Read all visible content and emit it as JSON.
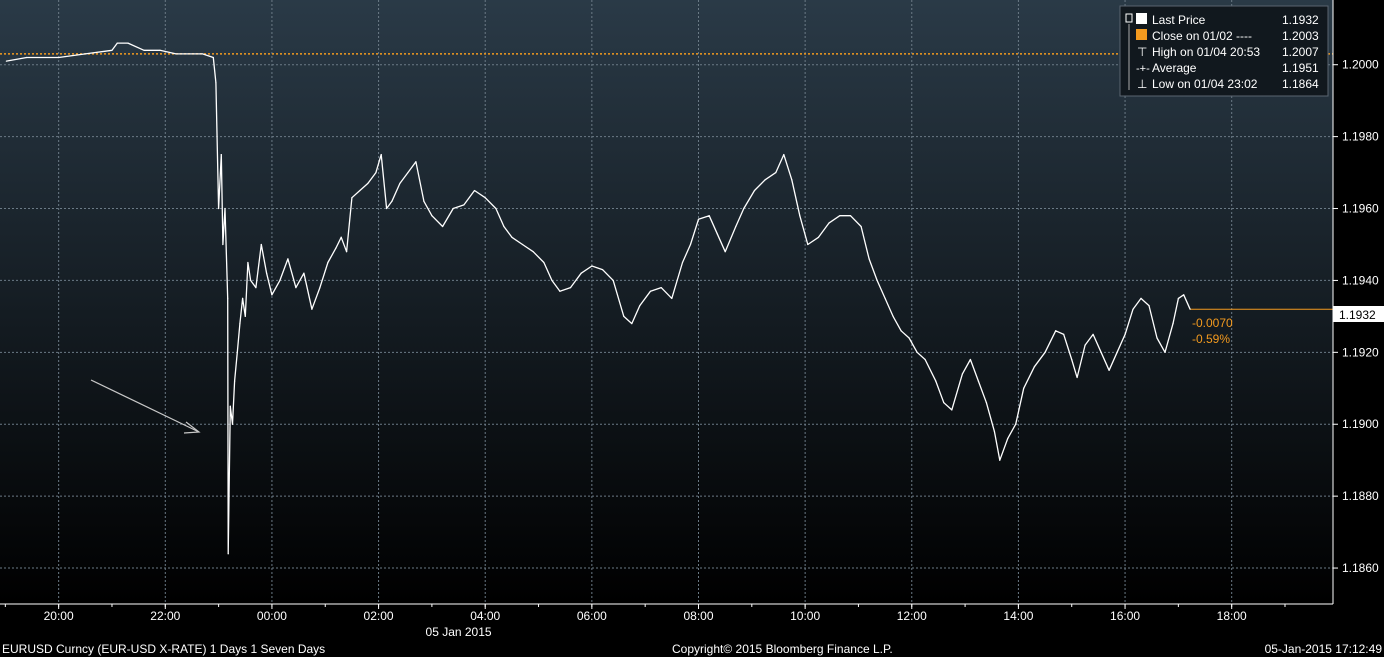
{
  "chart_data": {
    "type": "line",
    "x_axis": {
      "tick_labels": [
        "20:00",
        "22:00",
        "00:00",
        "02:00",
        "04:00",
        "06:00",
        "08:00",
        "10:00",
        "12:00",
        "14:00",
        "16:00",
        "18:00"
      ],
      "date_label": "05 Jan 2015",
      "range_hours": [
        -5.1,
        19.9
      ]
    },
    "y_axis": {
      "tick_labels": [
        "1.1860",
        "1.1880",
        "1.1900",
        "1.1920",
        "1.1940",
        "1.1960",
        "1.1980",
        "1.2000"
      ],
      "ylim": [
        1.185,
        1.2018
      ],
      "grid": true
    },
    "series": [
      {
        "name": "Last Price",
        "color": "#ffffff",
        "points": [
          [
            -4.98,
            1.2001
          ],
          [
            -4.6,
            1.2002
          ],
          [
            -4.0,
            1.2002
          ],
          [
            -3.5,
            1.2003
          ],
          [
            -3.0,
            1.2004
          ],
          [
            -2.9,
            1.2006
          ],
          [
            -2.7,
            1.2006
          ],
          [
            -2.4,
            1.2004
          ],
          [
            -2.1,
            1.2004
          ],
          [
            -1.8,
            1.2003
          ],
          [
            -1.3,
            1.2003
          ],
          [
            -1.1,
            1.2002
          ],
          [
            -1.05,
            1.1995
          ],
          [
            -1.0,
            1.196
          ],
          [
            -0.95,
            1.1975
          ],
          [
            -0.92,
            1.195
          ],
          [
            -0.88,
            1.196
          ],
          [
            -0.83,
            1.1935
          ],
          [
            -0.82,
            1.1864
          ],
          [
            -0.78,
            1.1905
          ],
          [
            -0.74,
            1.19
          ],
          [
            -0.7,
            1.1912
          ],
          [
            -0.65,
            1.192
          ],
          [
            -0.6,
            1.1928
          ],
          [
            -0.55,
            1.1935
          ],
          [
            -0.5,
            1.193
          ],
          [
            -0.45,
            1.1945
          ],
          [
            -0.4,
            1.194
          ],
          [
            -0.3,
            1.1938
          ],
          [
            -0.2,
            1.195
          ],
          [
            -0.1,
            1.1942
          ],
          [
            0.0,
            1.1936
          ],
          [
            0.15,
            1.194
          ],
          [
            0.3,
            1.1946
          ],
          [
            0.45,
            1.1938
          ],
          [
            0.6,
            1.1942
          ],
          [
            0.75,
            1.1932
          ],
          [
            0.9,
            1.1938
          ],
          [
            1.05,
            1.1945
          ],
          [
            1.2,
            1.1949
          ],
          [
            1.3,
            1.1952
          ],
          [
            1.4,
            1.1948
          ],
          [
            1.5,
            1.1963
          ],
          [
            1.65,
            1.1965
          ],
          [
            1.8,
            1.1967
          ],
          [
            1.95,
            1.197
          ],
          [
            2.05,
            1.1975
          ],
          [
            2.15,
            1.196
          ],
          [
            2.25,
            1.1962
          ],
          [
            2.4,
            1.1967
          ],
          [
            2.55,
            1.197
          ],
          [
            2.7,
            1.1973
          ],
          [
            2.85,
            1.1962
          ],
          [
            3.0,
            1.1958
          ],
          [
            3.2,
            1.1955
          ],
          [
            3.4,
            1.196
          ],
          [
            3.6,
            1.1961
          ],
          [
            3.8,
            1.1965
          ],
          [
            4.0,
            1.1963
          ],
          [
            4.2,
            1.196
          ],
          [
            4.35,
            1.1955
          ],
          [
            4.5,
            1.1952
          ],
          [
            4.7,
            1.195
          ],
          [
            4.9,
            1.1948
          ],
          [
            5.1,
            1.1945
          ],
          [
            5.25,
            1.194
          ],
          [
            5.4,
            1.1937
          ],
          [
            5.6,
            1.1938
          ],
          [
            5.8,
            1.1942
          ],
          [
            6.0,
            1.1944
          ],
          [
            6.2,
            1.1943
          ],
          [
            6.4,
            1.194
          ],
          [
            6.6,
            1.193
          ],
          [
            6.75,
            1.1928
          ],
          [
            6.9,
            1.1933
          ],
          [
            7.1,
            1.1937
          ],
          [
            7.3,
            1.1938
          ],
          [
            7.5,
            1.1935
          ],
          [
            7.7,
            1.1945
          ],
          [
            7.85,
            1.195
          ],
          [
            8.0,
            1.1957
          ],
          [
            8.2,
            1.1958
          ],
          [
            8.35,
            1.1953
          ],
          [
            8.5,
            1.1948
          ],
          [
            8.7,
            1.1955
          ],
          [
            8.85,
            1.196
          ],
          [
            9.05,
            1.1965
          ],
          [
            9.25,
            1.1968
          ],
          [
            9.45,
            1.197
          ],
          [
            9.6,
            1.1975
          ],
          [
            9.75,
            1.1968
          ],
          [
            9.9,
            1.1958
          ],
          [
            10.05,
            1.195
          ],
          [
            10.25,
            1.1952
          ],
          [
            10.45,
            1.1956
          ],
          [
            10.65,
            1.1958
          ],
          [
            10.85,
            1.1958
          ],
          [
            11.05,
            1.1955
          ],
          [
            11.2,
            1.1946
          ],
          [
            11.35,
            1.194
          ],
          [
            11.5,
            1.1935
          ],
          [
            11.65,
            1.193
          ],
          [
            11.8,
            1.1926
          ],
          [
            11.95,
            1.1924
          ],
          [
            12.1,
            1.192
          ],
          [
            12.25,
            1.1918
          ],
          [
            12.45,
            1.1912
          ],
          [
            12.6,
            1.1906
          ],
          [
            12.75,
            1.1904
          ],
          [
            12.95,
            1.1914
          ],
          [
            13.1,
            1.1918
          ],
          [
            13.25,
            1.1912
          ],
          [
            13.4,
            1.1906
          ],
          [
            13.55,
            1.1898
          ],
          [
            13.65,
            1.189
          ],
          [
            13.8,
            1.1896
          ],
          [
            13.95,
            1.19
          ],
          [
            14.1,
            1.191
          ],
          [
            14.3,
            1.1916
          ],
          [
            14.5,
            1.192
          ],
          [
            14.7,
            1.1926
          ],
          [
            14.85,
            1.1925
          ],
          [
            15.0,
            1.1918
          ],
          [
            15.1,
            1.1913
          ],
          [
            15.25,
            1.1922
          ],
          [
            15.4,
            1.1925
          ],
          [
            15.55,
            1.192
          ],
          [
            15.7,
            1.1915
          ],
          [
            15.85,
            1.192
          ],
          [
            16.0,
            1.1925
          ],
          [
            16.15,
            1.1932
          ],
          [
            16.3,
            1.1935
          ],
          [
            16.45,
            1.1933
          ],
          [
            16.6,
            1.1924
          ],
          [
            16.75,
            1.192
          ],
          [
            16.9,
            1.1928
          ],
          [
            17.0,
            1.1935
          ],
          [
            17.1,
            1.1936
          ],
          [
            17.22,
            1.1932
          ]
        ]
      }
    ],
    "reference_lines": [
      {
        "label": "Close on 01/02",
        "value": 1.2003,
        "style": "dotted",
        "color": "#f39a1f"
      },
      {
        "label": "Last Price",
        "value": 1.1932,
        "style": "solid",
        "color": "#f39a1f"
      }
    ],
    "price_tag": "1.1932",
    "change_labels": [
      "-0.0070",
      "-0.59%"
    ],
    "annotation": "arrow pointing to the sharp drop at the start of 05 Jan 2015",
    "legend": {
      "placement": "top-right",
      "entries": [
        {
          "text": "Last Price",
          "value": "1.1932",
          "swatch": "#ffffff"
        },
        {
          "text": "Close on 01/02 ----",
          "value": "1.2003",
          "swatch": "#f39a1f"
        },
        {
          "text": "High on 01/04 20:53",
          "value": "1.2007",
          "swatch": "none"
        },
        {
          "text": "Average",
          "value": "1.1951",
          "swatch": "none"
        },
        {
          "text": "Low on 01/04 23:02",
          "value": "1.1864",
          "swatch": "none"
        }
      ]
    }
  },
  "footer": {
    "left": "EURUSD Curncy (EUR-USD X-RATE) 1 Days 1 Seven Days",
    "center": "Copyright© 2015 Bloomberg Finance L.P.",
    "right": "05-Jan-2015 17:12:49"
  },
  "colors": {
    "background_top": "#2a3a47",
    "background_bottom": "#000000",
    "grid": "#6b7a86",
    "accent": "#f39a1f",
    "line": "#ffffff"
  }
}
